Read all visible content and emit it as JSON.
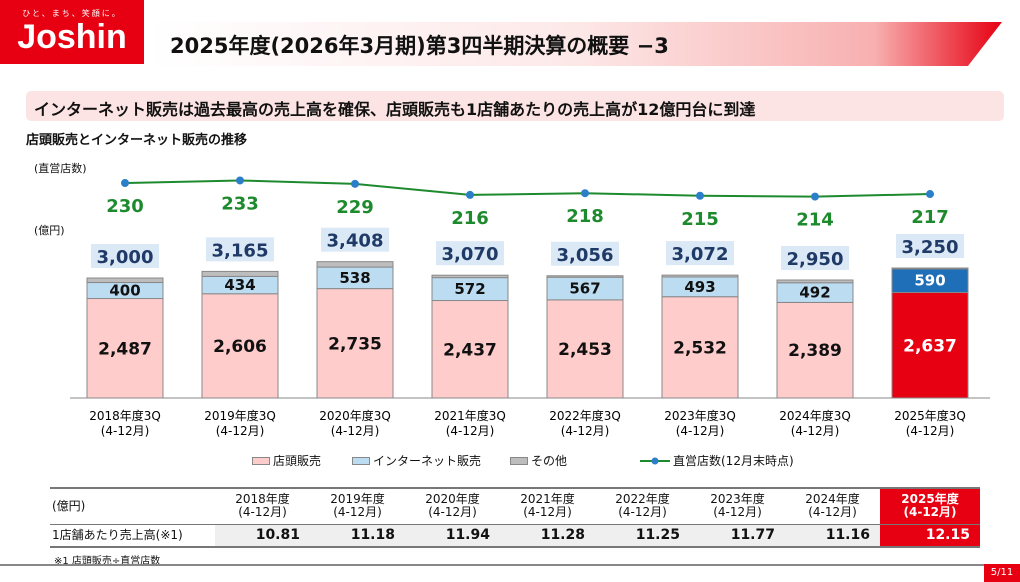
{
  "logo": {
    "tagline": "ひと、まち、笑顔に。",
    "name": "Joshin"
  },
  "title": "2025年度(2026年3月期)第3四半期決算の概要 −3",
  "headline": "インターネット販売は過去最高の売上高を確保、店頭販売も1店舗あたりの売上高が12億円台に到達",
  "subtitle": "店頭販売とインターネット販売の推移",
  "chart_data": {
    "type": "bar",
    "stacked": true,
    "y_label_left": "(億円)",
    "y_label_line": "(直営店数)",
    "categories": [
      [
        "2018年度3Q",
        "(4-12月)"
      ],
      [
        "2019年度3Q",
        "(4-12月)"
      ],
      [
        "2020年度3Q",
        "(4-12月)"
      ],
      [
        "2021年度3Q",
        "(4-12月)"
      ],
      [
        "2022年度3Q",
        "(4-12月)"
      ],
      [
        "2023年度3Q",
        "(4-12月)"
      ],
      [
        "2024年度3Q",
        "(4-12月)"
      ],
      [
        "2025年度3Q",
        "(4-12月)"
      ]
    ],
    "series": [
      {
        "name": "店頭販売",
        "values": [
          2487,
          2606,
          2735,
          2437,
          2453,
          2532,
          2389,
          2637
        ],
        "color": "#ffcccc"
      },
      {
        "name": "インターネット販売",
        "values": [
          400,
          434,
          538,
          572,
          567,
          493,
          492,
          590
        ],
        "color": "#bcdcf2"
      },
      {
        "name": "その他",
        "values": [
          113,
          125,
          135,
          61,
          36,
          47,
          69,
          23
        ],
        "color": "#bdbdbd"
      }
    ],
    "totals": [
      3000,
      3165,
      3408,
      3070,
      3056,
      3072,
      2950,
      3250
    ],
    "line": {
      "name": "直営店数(12月末時点)",
      "values": [
        230,
        233,
        229,
        216,
        218,
        215,
        214,
        217
      ],
      "color": "#1e8a2e"
    },
    "highlight_color": "#e60012",
    "highlight_net_color": "#1f6fb8"
  },
  "table": {
    "header_label": "(億円)",
    "columns": [
      [
        "2018年度",
        "(4-12月)"
      ],
      [
        "2019年度",
        "(4-12月)"
      ],
      [
        "2020年度",
        "(4-12月)"
      ],
      [
        "2021年度",
        "(4-12月)"
      ],
      [
        "2022年度",
        "(4-12月)"
      ],
      [
        "2023年度",
        "(4-12月)"
      ],
      [
        "2024年度",
        "(4-12月)"
      ],
      [
        "2025年度",
        "(4-12月)"
      ]
    ],
    "row_label": "1店舗あたり売上高(※1)",
    "values": [
      "10.81",
      "11.18",
      "11.94",
      "11.28",
      "11.25",
      "11.77",
      "11.16",
      "12.15"
    ]
  },
  "note": "※1  店頭販売÷直営店数",
  "page": "5/11"
}
